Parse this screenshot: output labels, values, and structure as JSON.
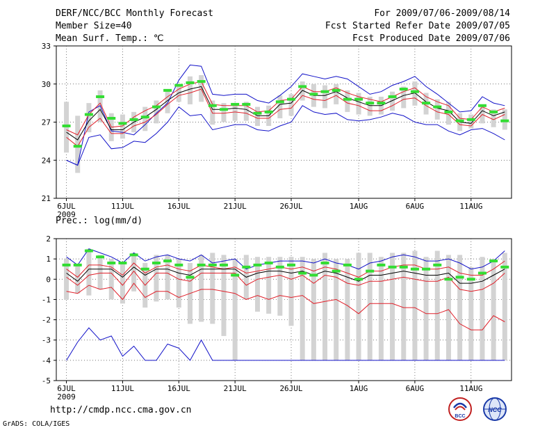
{
  "header": {
    "title": "DERF/NCC/BCC Monthly Forecast",
    "member_size": "Member Size=40",
    "variable": "Mean Surf. Temp.: ℃",
    "period": "For 2009/07/06-2009/08/14",
    "started": "Fcst Started Refer Date 2009/07/05",
    "produced": "Fcst Produced Date 2009/07/06"
  },
  "footer": {
    "url": "http://cmdp.ncc.cma.gov.cn",
    "credit": "GrADS: COLA/IGES",
    "logo_left_text": "BCC",
    "logo_right_text": "NCC"
  },
  "colors": {
    "box": "#d3d3d3",
    "mean": "#000000",
    "quartile": "#e0202a",
    "extreme": "#1010c8",
    "obs": "#33dd33"
  },
  "chart_data": [
    {
      "type": "line",
      "title": "Mean Surf. Temp.: ℃",
      "ylim": [
        21,
        33
      ],
      "yticks": [
        21,
        24,
        27,
        30,
        33
      ],
      "x_tick_labels": [
        "6JUL",
        "11JUL",
        "16JUL",
        "21JUL",
        "26JUL",
        "1AUG",
        "6AUG",
        "11AUG"
      ],
      "x_tick_days": [
        1,
        6,
        11,
        16,
        21,
        27,
        32,
        37
      ],
      "x_sub_label": "2009",
      "days": 40,
      "series": [
        {
          "name": "max",
          "values": [
            24.0,
            23.6,
            27.8,
            28.3,
            26.3,
            26.2,
            26.0,
            26.8,
            27.7,
            28.5,
            30.3,
            31.5,
            31.4,
            29.2,
            29.1,
            29.2,
            29.2,
            28.7,
            28.5,
            29.1,
            29.8,
            30.8,
            30.6,
            30.4,
            30.6,
            30.4,
            29.8,
            29.2,
            29.4,
            29.9,
            30.2,
            30.6,
            29.8,
            29.2,
            28.5,
            27.8,
            27.9,
            29.0,
            28.5,
            28.3
          ]
        },
        {
          "name": "upper",
          "values": [
            26.4,
            26.0,
            27.6,
            28.5,
            26.6,
            26.7,
            27.4,
            27.9,
            28.3,
            29.0,
            29.6,
            30.0,
            30.2,
            28.4,
            28.3,
            28.3,
            28.3,
            27.8,
            27.9,
            28.7,
            28.8,
            29.8,
            29.4,
            29.4,
            29.7,
            29.3,
            29.0,
            28.8,
            28.6,
            29.0,
            29.4,
            29.7,
            29.0,
            28.6,
            28.3,
            27.3,
            27.2,
            28.2,
            27.8,
            28.1
          ]
        },
        {
          "name": "mean",
          "values": [
            26.2,
            25.6,
            27.1,
            28.0,
            26.4,
            26.4,
            27.0,
            27.4,
            28.0,
            28.7,
            29.3,
            29.6,
            29.8,
            28.0,
            28.0,
            28.1,
            28.0,
            27.5,
            27.5,
            28.4,
            28.5,
            29.5,
            29.1,
            29.1,
            29.4,
            28.9,
            28.6,
            28.3,
            28.3,
            28.7,
            29.1,
            29.3,
            28.6,
            28.1,
            27.9,
            27.0,
            26.9,
            27.9,
            27.5,
            27.8
          ]
        },
        {
          "name": "lower",
          "values": [
            25.8,
            25.1,
            26.6,
            27.3,
            26.1,
            26.1,
            26.7,
            27.0,
            27.6,
            28.4,
            29.1,
            29.3,
            29.6,
            27.7,
            27.7,
            27.8,
            27.7,
            27.3,
            27.3,
            28.0,
            28.1,
            29.1,
            28.8,
            28.7,
            29.1,
            28.5,
            28.3,
            27.9,
            27.9,
            28.3,
            28.8,
            28.9,
            28.3,
            27.8,
            27.6,
            26.8,
            26.7,
            27.6,
            27.2,
            27.6
          ]
        },
        {
          "name": "min",
          "values": [
            24.0,
            23.6,
            25.8,
            26.0,
            24.9,
            25.0,
            25.5,
            25.4,
            26.1,
            27.0,
            28.2,
            27.5,
            27.6,
            26.4,
            26.6,
            26.8,
            26.8,
            26.4,
            26.3,
            26.7,
            27.0,
            28.3,
            27.8,
            27.6,
            27.7,
            27.2,
            27.1,
            27.2,
            27.4,
            27.7,
            27.5,
            27.0,
            26.8,
            26.8,
            26.3,
            26.0,
            26.4,
            26.5,
            26.1,
            25.6
          ]
        },
        {
          "name": "box_high",
          "values": [
            28.6,
            27.5,
            28.5,
            29.5,
            27.7,
            27.6,
            27.8,
            28.2,
            28.7,
            29.5,
            30.0,
            30.6,
            30.7,
            28.7,
            28.5,
            28.5,
            28.6,
            28.2,
            28.3,
            29.1,
            29.2,
            30.2,
            30.0,
            29.9,
            30.0,
            29.5,
            29.3,
            29.0,
            29.0,
            29.4,
            29.8,
            30.2,
            29.3,
            28.8,
            28.6,
            27.7,
            27.6,
            28.4,
            28.0,
            28.0
          ]
        },
        {
          "name": "box_low",
          "values": [
            24.6,
            23.0,
            26.2,
            27.0,
            25.5,
            25.7,
            26.2,
            26.3,
            26.9,
            27.7,
            28.6,
            28.4,
            28.6,
            26.8,
            27.0,
            27.1,
            27.1,
            26.7,
            26.7,
            27.3,
            27.5,
            28.7,
            28.2,
            28.1,
            28.4,
            27.8,
            27.6,
            27.5,
            27.6,
            27.9,
            28.1,
            28.3,
            27.6,
            27.2,
            26.8,
            26.3,
            26.5,
            26.9,
            26.6,
            26.4
          ]
        },
        {
          "name": "observed",
          "values": [
            26.7,
            25.1,
            27.6,
            29.0,
            27.3,
            26.9,
            27.2,
            27.4,
            28.2,
            29.5,
            29.9,
            30.1,
            30.2,
            28.3,
            28.0,
            28.4,
            28.4,
            27.7,
            27.8,
            28.6,
            28.8,
            29.8,
            29.2,
            29.4,
            29.5,
            28.8,
            28.8,
            28.5,
            28.5,
            29.0,
            29.6,
            29.4,
            28.5,
            28.2,
            27.8,
            27.1,
            27.2,
            28.3,
            27.8,
            27.1
          ]
        }
      ]
    },
    {
      "type": "line",
      "title": "Prec.: log(mm/d)",
      "ylim": [
        -5,
        2
      ],
      "yticks": [
        -5,
        -4,
        -3,
        -2,
        -1,
        0,
        1,
        2
      ],
      "x_tick_labels": [
        "6JUL",
        "11JUL",
        "16JUL",
        "21JUL",
        "26JUL",
        "1AUG",
        "6AUG",
        "11AUG"
      ],
      "x_tick_days": [
        1,
        6,
        11,
        16,
        21,
        27,
        32,
        37
      ],
      "x_sub_label": "2009",
      "days": 40,
      "series": [
        {
          "name": "max",
          "values": [
            1.1,
            0.7,
            1.5,
            1.3,
            1.1,
            0.8,
            1.3,
            0.9,
            1.1,
            1.2,
            1.0,
            0.9,
            1.2,
            0.8,
            0.9,
            1.0,
            0.5,
            0.7,
            0.8,
            0.9,
            0.9,
            0.9,
            0.8,
            1.0,
            0.8,
            0.7,
            0.5,
            0.8,
            0.9,
            1.1,
            1.2,
            1.1,
            0.9,
            0.9,
            1.0,
            0.8,
            0.5,
            0.6,
            0.9,
            1.4
          ]
        },
        {
          "name": "upper",
          "values": [
            0.5,
            0.1,
            0.7,
            0.7,
            0.6,
            0.2,
            0.8,
            0.3,
            0.6,
            0.7,
            0.5,
            0.4,
            0.7,
            0.6,
            0.5,
            0.6,
            0.3,
            0.4,
            0.5,
            0.6,
            0.5,
            0.6,
            0.4,
            0.6,
            0.5,
            0.3,
            0.1,
            0.4,
            0.4,
            0.6,
            0.7,
            0.7,
            0.5,
            0.5,
            0.6,
            0.3,
            0.2,
            0.2,
            0.5,
            0.9
          ]
        },
        {
          "name": "mean",
          "values": [
            0.3,
            -0.1,
            0.5,
            0.5,
            0.5,
            0.1,
            0.6,
            0.2,
            0.5,
            0.5,
            0.3,
            0.2,
            0.5,
            0.5,
            0.5,
            0.5,
            0.1,
            0.3,
            0.4,
            0.4,
            0.3,
            0.4,
            0.2,
            0.4,
            0.3,
            0.1,
            -0.1,
            0.2,
            0.2,
            0.3,
            0.4,
            0.3,
            0.2,
            0.2,
            0.3,
            -0.2,
            -0.2,
            -0.1,
            0.2,
            0.5
          ]
        },
        {
          "name": "lower",
          "values": [
            0.1,
            -0.3,
            0.2,
            0.3,
            0.3,
            -0.3,
            0.4,
            -0.3,
            0.3,
            0.3,
            0.0,
            -0.1,
            0.3,
            0.3,
            0.3,
            0.3,
            -0.3,
            0.0,
            0.1,
            0.2,
            0.0,
            0.2,
            -0.2,
            0.2,
            0.1,
            -0.2,
            -0.3,
            -0.1,
            -0.1,
            0.0,
            0.1,
            0.0,
            -0.1,
            -0.1,
            0.1,
            -0.5,
            -0.6,
            -0.5,
            -0.2,
            0.3
          ]
        },
        {
          "name": "q10",
          "values": [
            -0.6,
            -0.7,
            -0.3,
            -0.5,
            -0.4,
            -1.0,
            -0.2,
            -0.9,
            -0.6,
            -0.6,
            -0.9,
            -0.7,
            -0.5,
            -0.5,
            -0.6,
            -0.7,
            -1.0,
            -0.8,
            -1.0,
            -0.8,
            -0.9,
            -0.8,
            -1.2,
            -1.1,
            -1.0,
            -1.3,
            -1.7,
            -1.2,
            -1.2,
            -1.2,
            -1.4,
            -1.4,
            -1.7,
            -1.7,
            -1.5,
            -2.2,
            -2.5,
            -2.5,
            -1.8,
            -2.1
          ]
        },
        {
          "name": "min",
          "values": [
            -4.0,
            -3.1,
            -2.4,
            -3.0,
            -2.8,
            -3.8,
            -3.3,
            -4.0,
            -4.0,
            -3.2,
            -3.4,
            -4.0,
            -3.0,
            -4.0,
            -4.0,
            -4.0,
            -4.0,
            -4.0,
            -4.0,
            -4.0,
            -4.0,
            -4.0,
            -4.0,
            -4.0,
            -4.0,
            -4.0,
            -4.0,
            -4.0,
            -4.0,
            -4.0,
            -4.0,
            -4.0,
            -4.0,
            -4.0,
            -4.0,
            -4.0,
            -4.0,
            -4.0,
            -4.0,
            -4.0
          ]
        },
        {
          "name": "box_high",
          "values": [
            1.0,
            0.7,
            1.5,
            1.2,
            1.0,
            0.8,
            1.3,
            0.8,
            1.2,
            1.2,
            1.0,
            0.8,
            1.2,
            1.3,
            1.2,
            1.0,
            1.2,
            1.1,
            1.1,
            1.1,
            1.1,
            1.1,
            1.0,
            1.3,
            1.0,
            1.0,
            1.3,
            1.3,
            1.1,
            1.3,
            1.3,
            1.4,
            1.1,
            1.4,
            1.2,
            1.2,
            0.6,
            1.1,
            1.0,
            1.3
          ]
        },
        {
          "name": "box_low",
          "values": [
            -1.0,
            -0.7,
            -0.8,
            -0.5,
            -1.0,
            -1.2,
            -0.6,
            -1.4,
            -1.1,
            -1.0,
            -1.4,
            -2.2,
            -2.1,
            -2.2,
            -2.8,
            -4.0,
            -1.0,
            -1.6,
            -1.7,
            -1.8,
            -2.3,
            -4.0,
            -4.0,
            -4.0,
            -4.0,
            -4.0,
            -4.0,
            -4.0,
            -4.0,
            -4.0,
            -4.0,
            -4.0,
            -4.0,
            -4.0,
            -4.0,
            -4.0,
            -4.0,
            -4.0,
            -4.0,
            -4.0
          ]
        },
        {
          "name": "observed",
          "values": [
            0.7,
            0.7,
            1.4,
            1.1,
            0.8,
            0.8,
            1.2,
            0.5,
            0.8,
            0.9,
            0.7,
            0.1,
            0.7,
            0.7,
            0.7,
            0.2,
            0.6,
            0.7,
            0.8,
            0.6,
            0.7,
            0.3,
            0.2,
            0.8,
            0.4,
            0.7,
            0.0,
            0.4,
            0.7,
            0.6,
            0.6,
            0.5,
            0.5,
            0.7,
            0.0,
            0.1,
            0.0,
            0.3,
            0.9,
            0.6
          ]
        }
      ]
    }
  ]
}
